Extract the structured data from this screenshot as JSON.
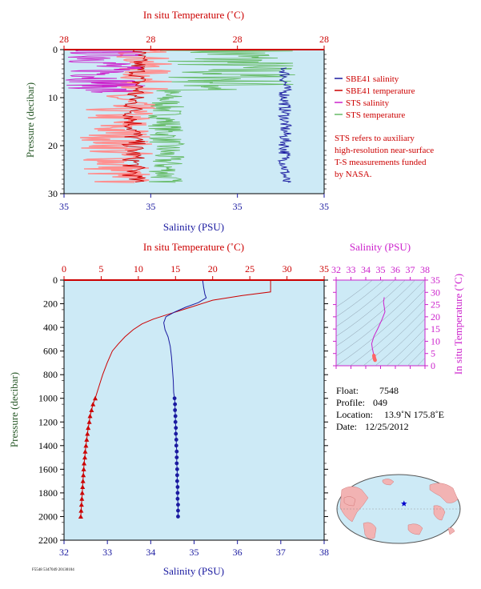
{
  "chart_data": [
    {
      "id": "top",
      "type": "line",
      "top_axis_label": "In situ Temperature (˚C)",
      "top_ticks": [
        "28",
        "28",
        "28",
        "28"
      ],
      "bottom_axis_label": "Salinity (PSU)",
      "bottom_ticks": [
        "35",
        "35",
        "35",
        "35"
      ],
      "ylabel": "Pressure (decibar)",
      "yticks": [
        "0",
        "10",
        "20",
        "30"
      ],
      "ylim": [
        0,
        30
      ],
      "legend": [
        {
          "name": "SBE41 salinity",
          "color": "#1a1aa0"
        },
        {
          "name": "SBE41 temperature",
          "color": "#cc0000"
        },
        {
          "name": "STS salinity",
          "color": "#cc22cc"
        },
        {
          "name": "STS temperature",
          "color": "#66bb66"
        }
      ],
      "note": [
        "STS refers to auxiliary",
        "high-resolution near-surface",
        "T-S measurements funded",
        "by NASA."
      ]
    },
    {
      "id": "profile",
      "type": "line",
      "top_axis_label": "In situ Temperature (˚C)",
      "top_ticks": [
        "0",
        "5",
        "10",
        "15",
        "20",
        "25",
        "30",
        "35"
      ],
      "xlim_temperature": [
        0,
        35
      ],
      "bottom_axis_label": "Salinity (PSU)",
      "bottom_ticks": [
        "32",
        "33",
        "34",
        "35",
        "36",
        "37",
        "38"
      ],
      "xlim_salinity": [
        32,
        38
      ],
      "ylabel": "Pressure (decibar)",
      "yticks": [
        "0",
        "200",
        "400",
        "600",
        "800",
        "1000",
        "1200",
        "1400",
        "1600",
        "1800",
        "2000",
        "2200"
      ],
      "ylim": [
        0,
        2200
      ],
      "series": [
        {
          "color": "#cc0000",
          "quantity": "temperature",
          "points": [
            [
              27.8,
              5
            ],
            [
              27.8,
              100
            ],
            [
              24,
              130
            ],
            [
              20,
              170
            ],
            [
              17,
              230
            ],
            [
              14,
              290
            ],
            [
              12,
              330
            ],
            [
              10.5,
              370
            ],
            [
              9.3,
              420
            ],
            [
              8.2,
              480
            ],
            [
              7.3,
              540
            ],
            [
              6.5,
              600
            ],
            [
              5.8,
              700
            ],
            [
              5.2,
              800
            ],
            [
              4.7,
              900
            ],
            [
              4.2,
              1000
            ]
          ],
          "markers": [
            [
              4.2,
              1000
            ],
            [
              3.9,
              1050
            ],
            [
              3.7,
              1100
            ],
            [
              3.5,
              1150
            ],
            [
              3.4,
              1200
            ],
            [
              3.25,
              1250
            ],
            [
              3.15,
              1300
            ],
            [
              3.05,
              1350
            ],
            [
              2.95,
              1400
            ],
            [
              2.85,
              1450
            ],
            [
              2.8,
              1500
            ],
            [
              2.7,
              1550
            ],
            [
              2.65,
              1600
            ],
            [
              2.6,
              1650
            ],
            [
              2.55,
              1700
            ],
            [
              2.5,
              1750
            ],
            [
              2.45,
              1800
            ],
            [
              2.4,
              1850
            ],
            [
              2.35,
              1900
            ],
            [
              2.3,
              1950
            ],
            [
              2.25,
              2000
            ]
          ]
        },
        {
          "color": "#1a1aa0",
          "quantity": "salinity",
          "points": [
            [
              35.2,
              5
            ],
            [
              35.22,
              60
            ],
            [
              35.25,
              120
            ],
            [
              35.28,
              150
            ],
            [
              35.1,
              190
            ],
            [
              34.8,
              230
            ],
            [
              34.55,
              270
            ],
            [
              34.35,
              310
            ],
            [
              34.3,
              360
            ],
            [
              34.33,
              420
            ],
            [
              34.4,
              480
            ],
            [
              34.45,
              560
            ],
            [
              34.48,
              650
            ],
            [
              34.5,
              750
            ],
            [
              34.52,
              850
            ],
            [
              34.53,
              950
            ],
            [
              34.55,
              1000
            ]
          ],
          "markers": [
            [
              34.55,
              1000
            ],
            [
              34.56,
              1050
            ],
            [
              34.56,
              1100
            ],
            [
              34.57,
              1150
            ],
            [
              34.57,
              1200
            ],
            [
              34.58,
              1250
            ],
            [
              34.58,
              1300
            ],
            [
              34.59,
              1350
            ],
            [
              34.59,
              1400
            ],
            [
              34.6,
              1450
            ],
            [
              34.6,
              1500
            ],
            [
              34.6,
              1550
            ],
            [
              34.61,
              1600
            ],
            [
              34.61,
              1650
            ],
            [
              34.61,
              1700
            ],
            [
              34.62,
              1750
            ],
            [
              34.62,
              1800
            ],
            [
              34.62,
              1850
            ],
            [
              34.63,
              1900
            ],
            [
              34.63,
              1950
            ],
            [
              34.63,
              2000
            ]
          ]
        }
      ]
    },
    {
      "id": "ts",
      "type": "scatter",
      "top_axis_label": "Salinity (PSU)",
      "top_ticks": [
        "32",
        "33",
        "34",
        "35",
        "36",
        "37",
        "38"
      ],
      "xlim": [
        32,
        38
      ],
      "right_axis_label": "In situ Temperature (˚C)",
      "right_ticks": [
        "0",
        "5",
        "10",
        "15",
        "20",
        "25",
        "30",
        "35"
      ],
      "ylim": [
        0,
        35
      ],
      "series": [
        {
          "color": "#cc22cc",
          "points": [
            [
              35.25,
              28
            ],
            [
              35.2,
              26
            ],
            [
              35.3,
              22
            ],
            [
              35.1,
              19
            ],
            [
              34.8,
              15
            ],
            [
              34.55,
              12
            ],
            [
              34.4,
              9
            ],
            [
              34.45,
              7
            ],
            [
              34.5,
              5.5
            ],
            [
              34.55,
              4.2
            ]
          ]
        },
        {
          "color": "#ff6666",
          "points": [
            [
              34.55,
              4.2
            ],
            [
              34.56,
              3.7
            ],
            [
              34.57,
              3.4
            ],
            [
              34.58,
              3.1
            ],
            [
              34.59,
              2.9
            ],
            [
              34.6,
              2.7
            ],
            [
              34.61,
              2.5
            ],
            [
              34.62,
              2.4
            ],
            [
              34.63,
              2.25
            ]
          ]
        }
      ]
    }
  ],
  "info": {
    "float_label": "Float:",
    "float_value": "7548",
    "profile_label": "Profile:",
    "profile_value": "049",
    "location_label": "Location:",
    "location_value": "13.9˚N  175.8˚E",
    "date_label": "Date:",
    "date_value": "12/25/2012"
  },
  "footer_tag": "F5548 5347049 20130104",
  "map": {
    "marker_lat": 13.9,
    "marker_lon": 175.8
  }
}
